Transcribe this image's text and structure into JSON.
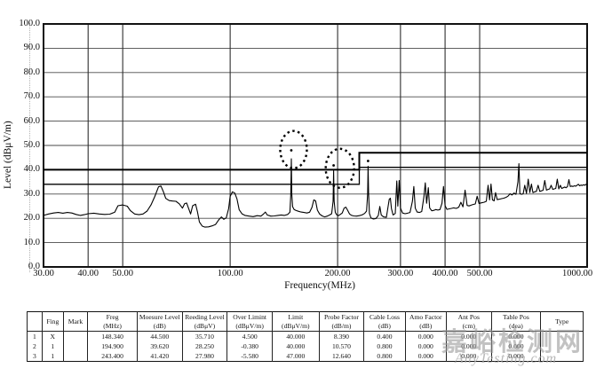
{
  "chart_data": {
    "type": "line",
    "title": "",
    "xlabel": "Frequency(MHz)",
    "ylabel": "Level (dBμV/m)",
    "x_scale": "log",
    "xlim": [
      30,
      1000
    ],
    "ylim": [
      0,
      100
    ],
    "grid": true,
    "x_ticks": [
      30,
      40,
      50,
      100,
      200,
      300,
      400,
      500,
      1000
    ],
    "x_tick_labels": [
      "30.00",
      "40.00",
      "50.00",
      "100.00",
      "200.00",
      "300.00",
      "400.00",
      "500.00",
      "1000.00"
    ],
    "y_ticks": [
      0,
      10,
      20,
      30,
      40,
      50,
      60,
      70,
      80,
      90,
      100
    ],
    "y_tick_labels": [
      "0.0",
      "10.0",
      "20.0",
      "30.0",
      "40.0",
      "50.0",
      "60.0",
      "70.0",
      "80.0",
      "90.0",
      "100.0"
    ],
    "limit_lines": [
      {
        "name": "limit",
        "points": [
          [
            30,
            40
          ],
          [
            230,
            40
          ],
          [
            230,
            47
          ],
          [
            1000,
            47
          ]
        ]
      },
      {
        "name": "margin",
        "points": [
          [
            30,
            34
          ],
          [
            230,
            34
          ],
          [
            230,
            41
          ],
          [
            1000,
            41
          ]
        ]
      }
    ],
    "marker_dots": [
      {
        "freq": 148.34,
        "level": 48.0
      },
      {
        "freq": 194.9,
        "level": 41.8
      },
      {
        "freq": 243.4,
        "level": 43.6
      }
    ],
    "annotations": [
      {
        "type": "dashed-ellipse",
        "freq": 150.5,
        "level": 48.3,
        "rx": 15,
        "ry": 21
      },
      {
        "type": "dashed-ellipse",
        "freq": 203.0,
        "level": 40.6,
        "rx": 16,
        "ry": 22
      }
    ],
    "series": [
      {
        "name": "emission-trace",
        "points": [
          [
            30,
            21.2
          ],
          [
            31,
            21.8
          ],
          [
            32,
            22.2
          ],
          [
            33,
            22.4
          ],
          [
            34,
            22.1
          ],
          [
            35,
            22.4
          ],
          [
            36,
            22.2
          ],
          [
            37,
            21.6
          ],
          [
            38,
            21.2
          ],
          [
            39,
            21.5
          ],
          [
            40,
            21.9
          ],
          [
            41.5,
            22.1
          ],
          [
            43,
            21.8
          ],
          [
            44.5,
            21.6
          ],
          [
            46,
            21.7
          ],
          [
            47.5,
            22.5
          ],
          [
            48.5,
            25.2
          ],
          [
            50,
            25.5
          ],
          [
            51.5,
            25.0
          ],
          [
            52.5,
            23.2
          ],
          [
            54,
            21.8
          ],
          [
            55.5,
            21.5
          ],
          [
            57,
            21.8
          ],
          [
            58.5,
            23.0
          ],
          [
            60,
            25.5
          ],
          [
            61.5,
            29.0
          ],
          [
            63,
            33.0
          ],
          [
            64,
            33.3
          ],
          [
            65,
            31.0
          ],
          [
            66,
            28.2
          ],
          [
            67.5,
            27.3
          ],
          [
            69,
            27.1
          ],
          [
            70.5,
            27.0
          ],
          [
            72,
            26.0
          ],
          [
            73.5,
            24.2
          ],
          [
            74.5,
            26.0
          ],
          [
            75.5,
            26.3
          ],
          [
            76.5,
            24.0
          ],
          [
            77.5,
            21.8
          ],
          [
            78.5,
            25.2
          ],
          [
            80,
            25.8
          ],
          [
            81,
            22.5
          ],
          [
            82,
            18.5
          ],
          [
            83.5,
            16.8
          ],
          [
            85,
            16.4
          ],
          [
            87,
            16.5
          ],
          [
            89,
            16.9
          ],
          [
            91,
            17.5
          ],
          [
            93,
            19.5
          ],
          [
            94.5,
            20.6
          ],
          [
            96,
            19.6
          ],
          [
            97.5,
            20.2
          ],
          [
            99,
            24.0
          ],
          [
            100,
            29.0
          ],
          [
            101.5,
            30.9
          ],
          [
            103,
            30.4
          ],
          [
            104.5,
            28.0
          ],
          [
            106,
            23.5
          ],
          [
            108,
            21.8
          ],
          [
            110,
            21.2
          ],
          [
            113,
            20.9
          ],
          [
            116,
            20.7
          ],
          [
            119,
            21.1
          ],
          [
            122,
            20.9
          ],
          [
            124,
            21.8
          ],
          [
            125.5,
            22.6
          ],
          [
            127,
            21.4
          ],
          [
            130,
            20.9
          ],
          [
            133,
            21.0
          ],
          [
            136,
            21.2
          ],
          [
            139,
            21.4
          ],
          [
            142,
            21.2
          ],
          [
            145,
            21.6
          ],
          [
            147,
            22.5
          ],
          [
            147.9,
            30.0
          ],
          [
            148.34,
            44.5
          ],
          [
            148.8,
            30.0
          ],
          [
            149.6,
            24.8
          ],
          [
            151,
            23.6
          ],
          [
            153,
            23.2
          ],
          [
            155.5,
            22.9
          ],
          [
            158,
            22.6
          ],
          [
            161,
            22.4
          ],
          [
            164,
            22.2
          ],
          [
            167,
            22.5
          ],
          [
            169.5,
            24.5
          ],
          [
            171.5,
            27.6
          ],
          [
            173.5,
            27.2
          ],
          [
            175.5,
            23.4
          ],
          [
            178,
            21.8
          ],
          [
            181,
            21.0
          ],
          [
            184,
            20.6
          ],
          [
            187,
            20.9
          ],
          [
            190,
            21.4
          ],
          [
            192.5,
            21.9
          ],
          [
            194.2,
            27.0
          ],
          [
            194.9,
            39.6
          ],
          [
            195.6,
            27.0
          ],
          [
            197,
            22.4
          ],
          [
            199,
            21.4
          ],
          [
            201,
            21.1
          ],
          [
            203.5,
            21.6
          ],
          [
            206,
            22.2
          ],
          [
            208.5,
            24.2
          ],
          [
            211,
            24.6
          ],
          [
            213.5,
            23.2
          ],
          [
            216,
            21.8
          ],
          [
            219,
            21.2
          ],
          [
            222,
            21.0
          ],
          [
            226,
            20.9
          ],
          [
            230,
            21.1
          ],
          [
            234,
            21.4
          ],
          [
            238,
            22.0
          ],
          [
            241,
            23.0
          ],
          [
            242.8,
            30.0
          ],
          [
            243.4,
            41.4
          ],
          [
            244.2,
            30.0
          ],
          [
            245.5,
            22.0
          ],
          [
            248,
            20.2
          ],
          [
            252,
            19.7
          ],
          [
            256,
            19.9
          ],
          [
            260,
            21.2
          ],
          [
            262.5,
            24.9
          ],
          [
            265,
            21.4
          ],
          [
            269,
            20.6
          ],
          [
            274,
            20.4
          ],
          [
            279,
            27.8
          ],
          [
            281,
            28.3
          ],
          [
            283,
            24.0
          ],
          [
            286,
            21.4
          ],
          [
            290,
            22.0
          ],
          [
            293,
            35.4
          ],
          [
            295,
            25.0
          ],
          [
            297.5,
            35.6
          ],
          [
            300,
            24.2
          ],
          [
            304,
            22.2
          ],
          [
            309,
            21.9
          ],
          [
            314,
            22.1
          ],
          [
            319,
            22.4
          ],
          [
            324,
            27.0
          ],
          [
            327,
            33.1
          ],
          [
            330,
            24.2
          ],
          [
            334,
            22.6
          ],
          [
            339,
            22.4
          ],
          [
            344,
            22.8
          ],
          [
            349,
            29.0
          ],
          [
            352,
            34.6
          ],
          [
            355,
            26.2
          ],
          [
            359,
            32.6
          ],
          [
            362,
            24.3
          ],
          [
            367,
            23.1
          ],
          [
            372,
            23.3
          ],
          [
            377,
            23.6
          ],
          [
            382,
            23.4
          ],
          [
            387,
            23.6
          ],
          [
            392,
            26.2
          ],
          [
            396,
            33.1
          ],
          [
            400,
            25.2
          ],
          [
            405,
            23.7
          ],
          [
            411,
            23.9
          ],
          [
            417,
            24.1
          ],
          [
            423,
            24.3
          ],
          [
            430,
            24.1
          ],
          [
            437,
            24.6
          ],
          [
            443,
            26.6
          ],
          [
            449,
            24.7
          ],
          [
            455,
            31.6
          ],
          [
            461,
            25.3
          ],
          [
            467,
            25.1
          ],
          [
            473,
            25.4
          ],
          [
            479,
            25.7
          ],
          [
            486,
            25.9
          ],
          [
            492,
            29.1
          ],
          [
            498,
            26.1
          ],
          [
            506,
            26.4
          ],
          [
            514,
            26.6
          ],
          [
            522,
            27.0
          ],
          [
            528,
            33.6
          ],
          [
            533,
            27.6
          ],
          [
            538,
            34.1
          ],
          [
            543,
            27.6
          ],
          [
            549,
            27.2
          ],
          [
            554,
            30.6
          ],
          [
            560,
            27.7
          ],
          [
            568,
            27.9
          ],
          [
            576,
            28.1
          ],
          [
            584,
            28.3
          ],
          [
            592,
            28.6
          ],
          [
            600,
            29.1
          ],
          [
            608,
            30.1
          ],
          [
            616,
            29.6
          ],
          [
            624,
            30.4
          ],
          [
            632,
            29.9
          ],
          [
            640,
            35.0
          ],
          [
            644,
            42.5
          ],
          [
            648,
            30.2
          ],
          [
            655,
            29.9
          ],
          [
            662,
            30.1
          ],
          [
            669,
            33.6
          ],
          [
            676,
            30.3
          ],
          [
            684,
            36.1
          ],
          [
            691,
            30.6
          ],
          [
            698,
            34.1
          ],
          [
            705,
            30.6
          ],
          [
            713,
            30.9
          ],
          [
            721,
            31.1
          ],
          [
            729,
            33.6
          ],
          [
            737,
            31.1
          ],
          [
            745,
            31.3
          ],
          [
            753,
            31.6
          ],
          [
            761,
            35.6
          ],
          [
            769,
            31.6
          ],
          [
            777,
            31.9
          ],
          [
            785,
            32.1
          ],
          [
            793,
            33.6
          ],
          [
            801,
            31.9
          ],
          [
            809,
            32.1
          ],
          [
            817,
            32.3
          ],
          [
            825,
            36.1
          ],
          [
            833,
            32.1
          ],
          [
            841,
            33.6
          ],
          [
            849,
            32.3
          ],
          [
            857,
            32.6
          ],
          [
            865,
            32.9
          ],
          [
            873,
            32.6
          ],
          [
            881,
            33.1
          ],
          [
            889,
            35.9
          ],
          [
            897,
            33.1
          ],
          [
            905,
            33.3
          ],
          [
            913,
            33.1
          ],
          [
            921,
            33.4
          ],
          [
            929,
            33.2
          ],
          [
            937,
            33.6
          ],
          [
            945,
            34.0
          ],
          [
            953,
            33.4
          ],
          [
            961,
            33.7
          ],
          [
            969,
            33.5
          ],
          [
            977,
            33.8
          ],
          [
            985,
            33.6
          ],
          [
            993,
            34.0
          ],
          [
            1000,
            33.8
          ]
        ]
      }
    ]
  },
  "table": {
    "columns": [
      {
        "label": "",
        "unit": ""
      },
      {
        "label": "Fing",
        "unit": ""
      },
      {
        "label": "Mark",
        "unit": ""
      },
      {
        "label": "Freg",
        "unit": "(MHz)"
      },
      {
        "label": "Moesure Level",
        "unit": "(dB)"
      },
      {
        "label": "Reeding Level",
        "unit": "(dBμV)"
      },
      {
        "label": "Over  Limint",
        "unit": "(dBμV/m)"
      },
      {
        "label": "Limit",
        "unit": "(dBμV/m)"
      },
      {
        "label": "Probe Factor",
        "unit": "(dB/m)"
      },
      {
        "label": "Cable Loss",
        "unit": "(dB)"
      },
      {
        "label": "Amo Factor",
        "unit": "(dB)"
      },
      {
        "label": "Ant Pos",
        "unit": "(cm)"
      },
      {
        "label": "Table Pos",
        "unit": "(dea)"
      },
      {
        "label": "Type",
        "unit": ""
      }
    ],
    "rows": [
      [
        "1",
        "X",
        "",
        "148.340",
        "44.500",
        "35.710",
        "4.500",
        "40.000",
        "8.390",
        "0.400",
        "0.000",
        "0.000",
        "0.000",
        ""
      ],
      [
        "2",
        "1",
        "",
        "194.900",
        "39.620",
        "28.250",
        "-0.380",
        "40.000",
        "10.570",
        "0.800",
        "0.000",
        "0.000",
        "0.000",
        ""
      ],
      [
        "3",
        "1",
        "",
        "243.400",
        "41.420",
        "27.980",
        "-5.580",
        "47.000",
        "12.640",
        "0.800",
        "0.000",
        "0.000",
        "0.000",
        ""
      ]
    ]
  },
  "watermark": {
    "cn": "嘉峪检测网",
    "en": "AnyTesting.com"
  }
}
